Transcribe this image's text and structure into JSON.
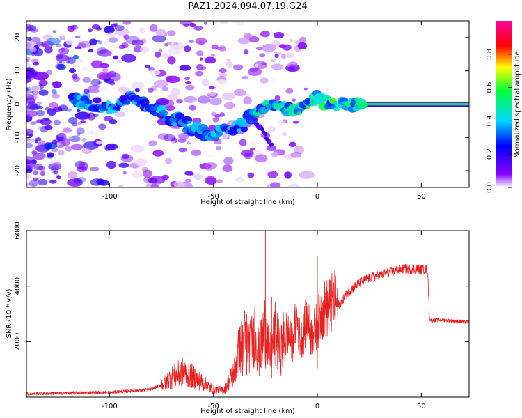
{
  "title": "PAZ1.2024.094.07.19.G24",
  "chart_data": [
    {
      "type": "heatmap",
      "xlabel": "Height of straight line (km)",
      "ylabel": "Frequency (Hz)",
      "xlim": [
        -140,
        73
      ],
      "ylim": [
        -25,
        25
      ],
      "xticks": [
        -100,
        -50,
        0,
        50
      ],
      "yticks": [
        -20,
        -10,
        0,
        10,
        20
      ],
      "colorbar": {
        "label": "Normalized spectral amplitude",
        "range": [
          0,
          1
        ],
        "ticks": [
          "0.0",
          "0.2",
          "0.4",
          "0.6",
          "0.8"
        ],
        "colormap": [
          "#ffffff",
          "#8a00ff",
          "#0000ff",
          "#00d8ff",
          "#00ff3a",
          "#ffff00",
          "#ff0000",
          "#ff00a0"
        ]
      },
      "ridge": {
        "height_km": [
          -115,
          -100,
          -90,
          -80,
          -70,
          -60,
          -50,
          -45,
          -40,
          -35,
          -30,
          -25,
          -20,
          -15,
          -10,
          -5,
          0,
          5,
          10,
          15,
          20,
          73
        ],
        "frequency_hz": [
          1,
          -1,
          2,
          -1,
          -4,
          -7,
          -10,
          -7,
          -7,
          -6,
          -2,
          0,
          0,
          -1,
          -2,
          -1,
          2,
          0,
          0,
          0,
          0,
          0
        ]
      }
    },
    {
      "type": "line",
      "xlabel": "Height of straight line (km)",
      "ylabel": "SNR (10 * v/v)",
      "xlim": [
        -140,
        73
      ],
      "ylim": [
        0,
        6000
      ],
      "xticks": [
        -100,
        -50,
        0,
        50
      ],
      "yticks": [
        2000,
        4000,
        6000
      ],
      "color": "#e82020",
      "series": [
        {
          "x": [
            -140,
            -120,
            -100,
            -90,
            -80,
            -75,
            -70,
            -65,
            -60,
            -55,
            -50,
            -45,
            -40,
            -38,
            -35,
            -32,
            -30,
            -28,
            -25,
            -23,
            -20,
            -18,
            -15,
            -12,
            -10,
            -8,
            -5,
            -3,
            0,
            2,
            5,
            8,
            10,
            15,
            20,
            25,
            30,
            35,
            40,
            45,
            50,
            53,
            54,
            55,
            60,
            65,
            70,
            73
          ],
          "y": [
            120,
            150,
            170,
            220,
            280,
            450,
            700,
            900,
            750,
            500,
            280,
            250,
            900,
            1600,
            2100,
            1800,
            2500,
            1500,
            2600,
            1400,
            2300,
            1600,
            2400,
            1900,
            2900,
            2000,
            2800,
            2200,
            2600,
            3100,
            3200,
            3400,
            3300,
            3800,
            4100,
            4300,
            4400,
            4500,
            4600,
            4620,
            4600,
            4600,
            2800,
            2760,
            2780,
            2750,
            2720,
            2700
          ]
        }
      ],
      "spikes": {
        "x": [
          -25,
          0,
          -34,
          -36,
          -22
        ],
        "y": [
          6000,
          5100,
          3000,
          2600,
          3600
        ]
      }
    }
  ]
}
